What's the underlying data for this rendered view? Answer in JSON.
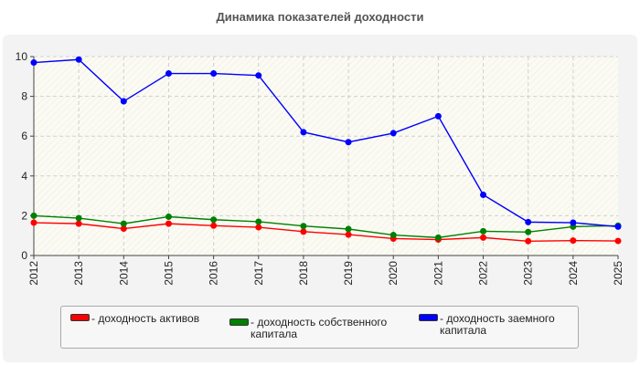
{
  "chart_data": {
    "type": "line",
    "title": "Динамика показателей доходности",
    "xlabel": "",
    "ylabel": "",
    "categories": [
      "2012",
      "2013",
      "2014",
      "2015",
      "2016",
      "2017",
      "2018",
      "2019",
      "2020",
      "2021",
      "2022",
      "2023",
      "2024",
      "2025"
    ],
    "ylim": [
      0,
      10
    ],
    "yticks": [
      0,
      2,
      4,
      6,
      8,
      10
    ],
    "grid": true,
    "legend_position": "bottom",
    "series": [
      {
        "name": "- доходность активов",
        "color": "#ff0000",
        "values": [
          1.65,
          1.6,
          1.35,
          1.6,
          1.5,
          1.42,
          1.2,
          1.05,
          0.85,
          0.8,
          0.9,
          0.72,
          0.75,
          0.73
        ]
      },
      {
        "name": "- доходность собственного капитала",
        "color": "#008000",
        "values": [
          2.0,
          1.88,
          1.6,
          1.95,
          1.8,
          1.7,
          1.48,
          1.33,
          1.03,
          0.9,
          1.22,
          1.18,
          1.45,
          1.5
        ]
      },
      {
        "name": "- доходность заемного капитала",
        "color": "#0000ff",
        "values": [
          9.7,
          9.85,
          7.75,
          9.15,
          9.15,
          9.05,
          6.2,
          5.7,
          6.15,
          7.0,
          3.05,
          1.68,
          1.65,
          1.45
        ]
      }
    ]
  }
}
